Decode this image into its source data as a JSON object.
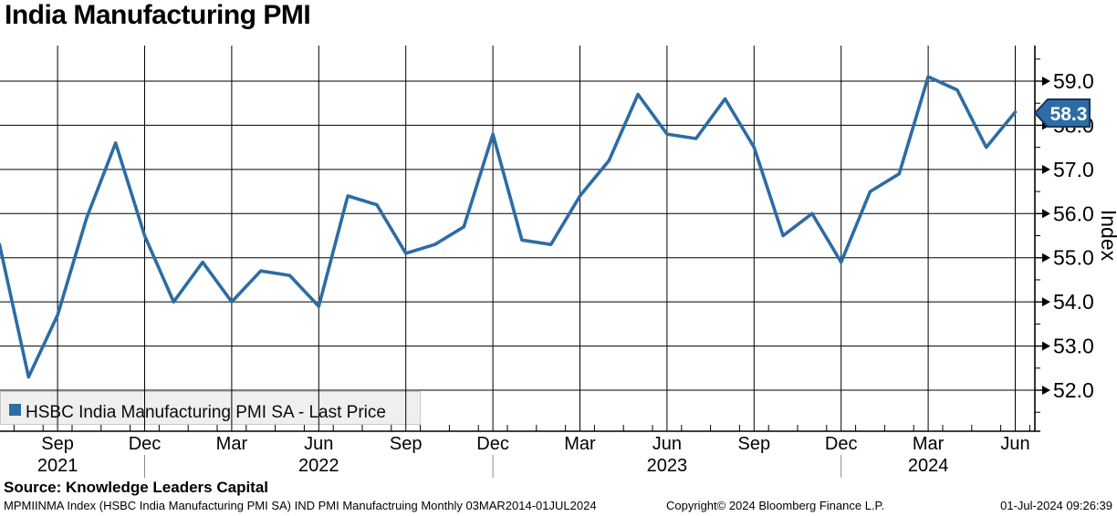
{
  "title": "India Manufacturing PMI",
  "source_line": "Source: Knowledge Leaders Capital",
  "footer": {
    "left": "MPMIINMA Index (HSBC India Manufacturing PMI SA) IND PMI Manufactruing  Monthly 03MAR2014-01JUL2024",
    "center": "Copyright© 2024 Bloomberg Finance L.P.",
    "right": "01-Jul-2024 09:26:39"
  },
  "legend": {
    "swatch_icon": "blue-square",
    "label": "HSBC India Manufacturing PMI SA - Last Price",
    "position": "bottom-left"
  },
  "colors": {
    "line": "#2d6ca4",
    "badge_fill": "#2d6ca4",
    "badge_border": "#17375c",
    "badge_text": "#ffffff",
    "grid": "#000000",
    "axis": "#000000",
    "legend_bg": "#efefef",
    "legend_border": "#c9c9c9",
    "year_divider": "#8a8a8a",
    "text": "#000000"
  },
  "chart_data": {
    "type": "line",
    "title": "India Manufacturing PMI",
    "ylabel": "Index",
    "ylim": [
      51.1,
      59.8
    ],
    "yticks": [
      59.0,
      58.0,
      57.0,
      56.0,
      55.0,
      54.0,
      53.0,
      52.0
    ],
    "y_minor_step": 0.5,
    "grid": true,
    "legend_position": "bottom-left",
    "last_price": "58.3",
    "x": [
      "Jul 2021",
      "Aug 2021",
      "Sep 2021",
      "Oct 2021",
      "Nov 2021",
      "Dec 2021",
      "Jan 2022",
      "Feb 2022",
      "Mar 2022",
      "Apr 2022",
      "May 2022",
      "Jun 2022",
      "Jul 2022",
      "Aug 2022",
      "Sep 2022",
      "Oct 2022",
      "Nov 2022",
      "Dec 2022",
      "Jan 2023",
      "Feb 2023",
      "Mar 2023",
      "Apr 2023",
      "May 2023",
      "Jun 2023",
      "Jul 2023",
      "Aug 2023",
      "Sep 2023",
      "Oct 2023",
      "Nov 2023",
      "Dec 2023",
      "Jan 2024",
      "Feb 2024",
      "Mar 2024",
      "Apr 2024",
      "May 2024",
      "Jun 2024"
    ],
    "series": [
      {
        "name": "HSBC India Manufacturing PMI SA - Last Price",
        "values": [
          55.3,
          52.3,
          53.7,
          55.9,
          57.6,
          55.5,
          54.0,
          54.9,
          54.0,
          54.7,
          54.6,
          53.9,
          56.4,
          56.2,
          55.1,
          55.3,
          55.7,
          57.8,
          55.4,
          55.3,
          56.4,
          57.2,
          58.7,
          57.8,
          57.7,
          58.6,
          57.5,
          55.5,
          56.0,
          54.9,
          56.5,
          56.9,
          59.1,
          58.8,
          57.5,
          58.3
        ]
      }
    ],
    "xticks": [
      {
        "index": 2,
        "label": "Sep",
        "year": "2021"
      },
      {
        "index": 5,
        "label": "Dec",
        "year_divider": true
      },
      {
        "index": 8,
        "label": "Mar"
      },
      {
        "index": 11,
        "label": "Jun",
        "year": "2022"
      },
      {
        "index": 14,
        "label": "Sep"
      },
      {
        "index": 17,
        "label": "Dec",
        "year_divider": true
      },
      {
        "index": 20,
        "label": "Mar"
      },
      {
        "index": 23,
        "label": "Jun",
        "year": "2023"
      },
      {
        "index": 26,
        "label": "Sep"
      },
      {
        "index": 29,
        "label": "Dec",
        "year_divider": true
      },
      {
        "index": 32,
        "label": "Mar",
        "year": "2024"
      },
      {
        "index": 35,
        "label": "Jun"
      }
    ]
  }
}
